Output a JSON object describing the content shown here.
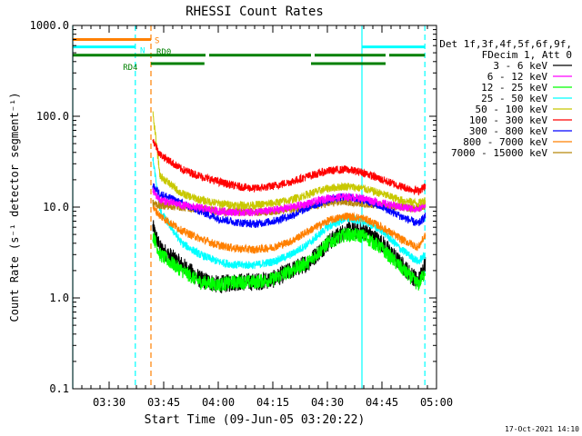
{
  "chart_data": {
    "type": "line",
    "title": "RHESSI Count Rates",
    "xlabel": "Start Time (09-Jun-05 03:20:22)",
    "ylabel": "Count Rate (s⁻¹ detector segment⁻¹)",
    "yscale": "log",
    "ylim": [
      0.1,
      1000
    ],
    "xlim_minutes_after_0320": [
      0,
      100
    ],
    "x_ticks": [
      {
        "label": "03:30",
        "minute": 10
      },
      {
        "label": "03:45",
        "minute": 25
      },
      {
        "label": "04:00",
        "minute": 40
      },
      {
        "label": "04:15",
        "minute": 55
      },
      {
        "label": "04:30",
        "minute": 70
      },
      {
        "label": "04:45",
        "minute": 85
      },
      {
        "label": "05:00",
        "minute": 100
      }
    ],
    "y_ticks": [
      {
        "label": "0.1",
        "value": 0.1
      },
      {
        "label": "1.0",
        "value": 1
      },
      {
        "label": "10.0",
        "value": 10
      },
      {
        "label": "100.0",
        "value": 100
      },
      {
        "label": "1000.0",
        "value": 1000
      }
    ],
    "legend_header": [
      "Det 1f,3f,4f,5f,6f,9f,",
      "FDecim 1, Att 0"
    ],
    "series": [
      {
        "name": "3 - 6 keV",
        "color": "#000000",
        "x": [
          22,
          24,
          30,
          35,
          40,
          45,
          50,
          55,
          60,
          65,
          70,
          75,
          80,
          85,
          90,
          95,
          97
        ],
        "values": [
          6,
          3.5,
          2.3,
          1.6,
          1.4,
          1.5,
          1.5,
          1.6,
          2,
          2.5,
          4,
          5.5,
          5.5,
          4,
          2.4,
          1.5,
          2.5
        ]
      },
      {
        "name": "6 - 12 keV",
        "color": "#ff00ff",
        "x": [
          22,
          24,
          30,
          35,
          40,
          45,
          50,
          55,
          60,
          65,
          70,
          75,
          80,
          85,
          90,
          95,
          97
        ],
        "values": [
          15,
          12,
          10.5,
          9.8,
          9,
          8.8,
          8.8,
          9.2,
          10,
          11,
          12.5,
          13,
          12.5,
          11,
          10,
          9.5,
          11
        ]
      },
      {
        "name": "12 - 25 keV",
        "color": "#00ff00",
        "x": [
          22,
          24,
          30,
          35,
          40,
          45,
          50,
          55,
          60,
          65,
          70,
          75,
          80,
          85,
          90,
          95,
          97
        ],
        "values": [
          5,
          3,
          2,
          1.5,
          1.4,
          1.5,
          1.5,
          1.6,
          2,
          2.5,
          4,
          5,
          4.8,
          3.5,
          2.2,
          1.4,
          2
        ]
      },
      {
        "name": "25 - 50 keV",
        "color": "#00ffff",
        "x": [
          22,
          24,
          30,
          35,
          40,
          45,
          50,
          55,
          60,
          65,
          70,
          75,
          80,
          85,
          90,
          95,
          97
        ],
        "values": [
          35,
          9,
          4,
          3,
          2.5,
          2.3,
          2.3,
          2.5,
          3,
          4,
          6,
          7.5,
          7,
          5.5,
          3.5,
          2.5,
          3
        ]
      },
      {
        "name": "50 - 100 keV",
        "color": "#c8c800",
        "x": [
          22,
          24,
          30,
          35,
          40,
          45,
          50,
          55,
          60,
          65,
          70,
          75,
          80,
          85,
          90,
          95,
          97
        ],
        "values": [
          110,
          22,
          14,
          12,
          11,
          10.5,
          10.5,
          11,
          12,
          14,
          16,
          17,
          16,
          14,
          12,
          11,
          12
        ]
      },
      {
        "name": "100 - 300 keV",
        "color": "#ff0000",
        "x": [
          22,
          24,
          30,
          35,
          40,
          45,
          50,
          55,
          60,
          65,
          70,
          75,
          80,
          85,
          90,
          95,
          97
        ],
        "values": [
          55,
          38,
          26,
          22,
          19,
          17,
          16,
          17,
          19,
          22,
          25,
          26,
          24,
          20,
          17,
          15,
          17
        ]
      },
      {
        "name": "300 - 800 keV",
        "color": "#0000ff",
        "x": [
          22,
          24,
          30,
          35,
          40,
          45,
          50,
          55,
          60,
          65,
          70,
          75,
          80,
          85,
          90,
          95,
          97
        ],
        "values": [
          17,
          14,
          11,
          9,
          7.5,
          6.8,
          6.5,
          7,
          8,
          10,
          12,
          13,
          12,
          10,
          8,
          6.5,
          8
        ]
      },
      {
        "name": "800 - 7000 keV",
        "color": "#ff8000",
        "x": [
          22,
          24,
          30,
          35,
          40,
          45,
          50,
          55,
          60,
          65,
          70,
          75,
          80,
          85,
          90,
          95,
          97
        ],
        "values": [
          10,
          8,
          5.5,
          4.5,
          3.8,
          3.5,
          3.4,
          3.6,
          4.2,
          5.5,
          7,
          8,
          7.5,
          6,
          4.5,
          3.6,
          5
        ]
      },
      {
        "name": "7000 - 15000 keV",
        "color": "#b8860b",
        "x": [
          22,
          24,
          30,
          35,
          40,
          45,
          50,
          55,
          60,
          65,
          70,
          75,
          80,
          85,
          90,
          95,
          97
        ],
        "values": [
          11,
          10.5,
          10,
          9.5,
          9,
          8.8,
          8.8,
          9,
          9.5,
          10,
          11,
          11.5,
          11,
          10.5,
          10,
          9.5,
          10.5
        ]
      }
    ],
    "flag_bars": [
      {
        "label": "S",
        "color": "#ff8000",
        "value": 700,
        "segments": [
          [
            0,
            21.5
          ]
        ]
      },
      {
        "label": "N",
        "color": "#00ffff",
        "value": 580,
        "segments": [
          [
            0,
            17.2
          ],
          [
            79.5,
            96.8
          ]
        ]
      },
      {
        "label": "RD0",
        "color": "#008000",
        "value": 470,
        "segments": [
          [
            0,
            36.5
          ],
          [
            37.5,
            65.5
          ],
          [
            66.5,
            86
          ],
          [
            87,
            96.8
          ]
        ]
      },
      {
        "label": "RD4",
        "color": "#008000",
        "value": 380,
        "segments": [
          [
            21.5,
            36.2
          ],
          [
            65.5,
            86
          ]
        ]
      }
    ],
    "vertical_markers": [
      {
        "minute": 0,
        "color": "#00ffff",
        "style": "solid"
      },
      {
        "minute": 17.2,
        "color": "#00ffff",
        "style": "dashed"
      },
      {
        "minute": 21.5,
        "color": "#ff8000",
        "style": "dashed"
      },
      {
        "minute": 79.5,
        "color": "#00ffff",
        "style": "solid"
      },
      {
        "minute": 96.8,
        "color": "#00ffff",
        "style": "dashed"
      }
    ],
    "timestamp": "17-Oct-2021 14:10"
  }
}
